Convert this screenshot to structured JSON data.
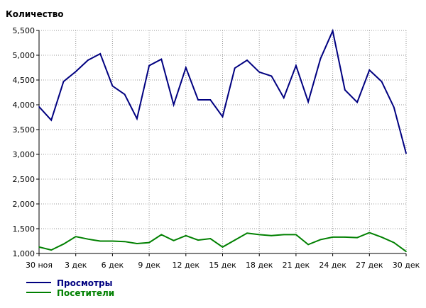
{
  "chart_data": {
    "type": "line",
    "title": "",
    "ylabel": "Количество",
    "xlabel": "",
    "ylim": [
      1000,
      5500
    ],
    "yticks": [
      1000,
      1500,
      2000,
      2500,
      3000,
      3500,
      4000,
      4500,
      5000,
      5500
    ],
    "ytick_labels": [
      "1,000",
      "1,500",
      "2,000",
      "2,500",
      "3,000",
      "3,500",
      "4,000",
      "4,500",
      "5,000",
      "5,500"
    ],
    "x": [
      "30 ноя",
      "1 дек",
      "2 дек",
      "3 дек",
      "4 дек",
      "5 дек",
      "6 дек",
      "7 дек",
      "8 дек",
      "9 дек",
      "10 дек",
      "11 дек",
      "12 дек",
      "13 дек",
      "14 дек",
      "15 дек",
      "16 дек",
      "17 дек",
      "18 дек",
      "19 дек",
      "20 дек",
      "21 дек",
      "22 дек",
      "23 дек",
      "24 дек",
      "25 дек",
      "26 дек",
      "27 дек",
      "28 дек",
      "29 дек",
      "30 дек"
    ],
    "xtick_labels": [
      "30 ноя",
      "3 дек",
      "6 дек",
      "9 дек",
      "12 дек",
      "15 дек",
      "18 дек",
      "21 дек",
      "24 дек",
      "27 дек",
      "30 дек"
    ],
    "grid": true,
    "legend_position": "bottom-left",
    "series": [
      {
        "name": "Просмотры",
        "color": "#000080",
        "values": [
          3960,
          3690,
          4470,
          4670,
          4900,
          5030,
          4380,
          4210,
          3720,
          4790,
          4920,
          4000,
          4750,
          4100,
          4100,
          3760,
          4740,
          4900,
          4660,
          4580,
          4140,
          4790,
          4060,
          4930,
          5490,
          4300,
          4050,
          4700,
          4470,
          3950,
          3020
        ]
      },
      {
        "name": "Посетители",
        "color": "#008000",
        "values": [
          1130,
          1070,
          1190,
          1340,
          1290,
          1250,
          1250,
          1240,
          1200,
          1220,
          1380,
          1260,
          1360,
          1270,
          1300,
          1130,
          1270,
          1410,
          1380,
          1360,
          1380,
          1380,
          1180,
          1280,
          1330,
          1330,
          1320,
          1420,
          1330,
          1220,
          1040
        ]
      }
    ]
  }
}
